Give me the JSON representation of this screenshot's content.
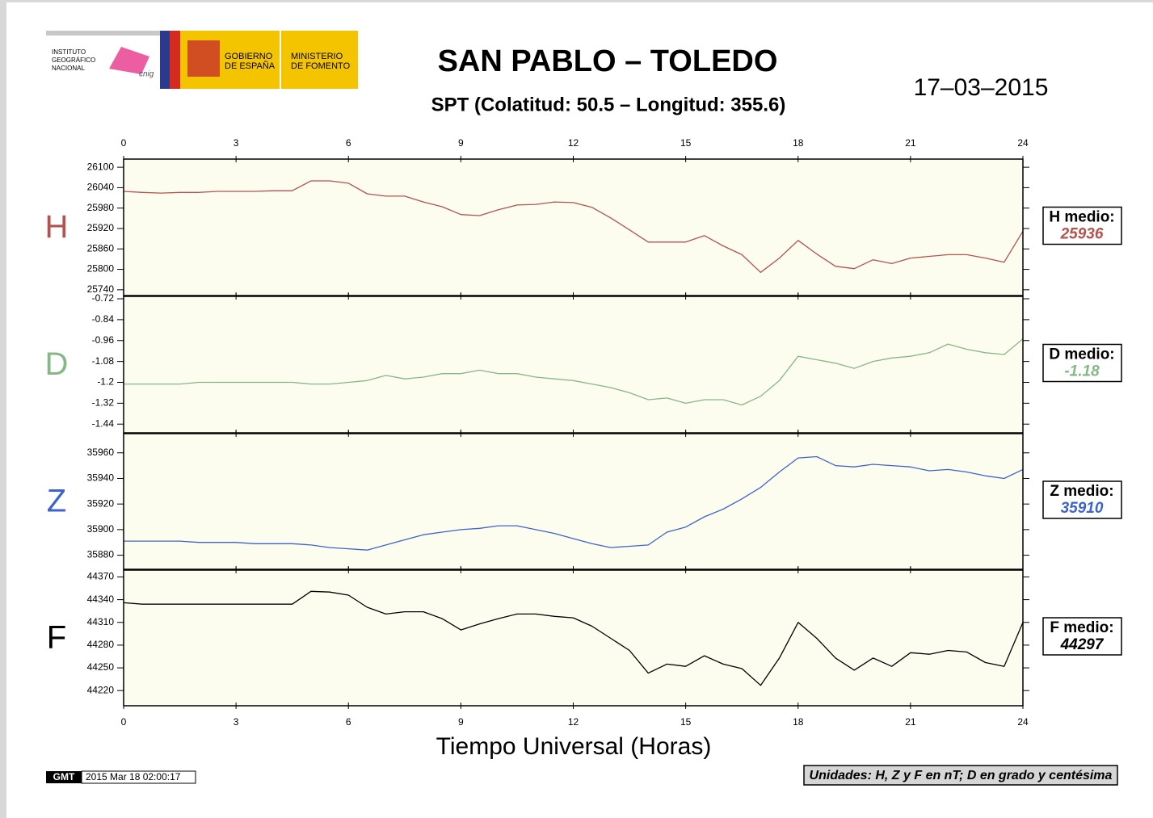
{
  "header": {
    "institute": [
      "INSTITUTO",
      "GEOGRÁFICO",
      "NACIONAL"
    ],
    "cnig": "cnig",
    "government": [
      "GOBIERNO",
      "DE ESPAÑA"
    ],
    "ministry": [
      "MINISTERIO",
      "DE FOMENTO"
    ],
    "title": "SAN PABLO – TOLEDO",
    "subtitle": "SPT (Colatitud: 50.5 – Longitud: 355.6)",
    "date": "17–03–2015"
  },
  "footer": {
    "gmt": "GMT",
    "timestamp": "2015 Mar 18 02:00:17",
    "units": "Unidades: H, Z y F en nT; D en grado y centésima"
  },
  "chart_data": [
    {
      "type": "line",
      "ylabel": "H",
      "color": "#b5524e",
      "mean_label": "H medio:",
      "mean": 25936,
      "xlim": [
        0,
        24
      ],
      "xticks": [
        0,
        3,
        6,
        9,
        12,
        15,
        18,
        21,
        24
      ],
      "ylim": [
        25723,
        26124
      ],
      "yticks": [
        25740,
        25800,
        25860,
        25920,
        25980,
        26040,
        26100
      ],
      "x": [
        0,
        0.5,
        1,
        1.5,
        2,
        2.5,
        3,
        3.5,
        4,
        4.5,
        5,
        5.5,
        6,
        6.5,
        7,
        7.5,
        8,
        8.5,
        9,
        9.5,
        10,
        10.5,
        11,
        11.5,
        12,
        12.5,
        13,
        13.5,
        14,
        14.5,
        15,
        15.5,
        16,
        16.5,
        17,
        17.5,
        18,
        18.5,
        19,
        19.5,
        20,
        20.5,
        21,
        21.5,
        22,
        22.5,
        23,
        23.5,
        24
      ],
      "values": [
        26029,
        26026,
        26024,
        26026,
        26026,
        26029,
        26029,
        26029,
        26031,
        26031,
        26060,
        26060,
        26053,
        26022,
        26015,
        26015,
        25998,
        25984,
        25961,
        25958,
        25975,
        25989,
        25991,
        25998,
        25996,
        25982,
        25951,
        25916,
        25880,
        25880,
        25880,
        25899,
        25869,
        25843,
        25791,
        25833,
        25885,
        25845,
        25809,
        25802,
        25828,
        25817,
        25833,
        25838,
        25843,
        25843,
        25833,
        25821,
        25912
      ]
    },
    {
      "type": "line",
      "ylabel": "D",
      "color": "#86b886",
      "mean_label": "D medio:",
      "mean": -1.18,
      "xlim": [
        0,
        24
      ],
      "xticks": [
        0,
        3,
        6,
        9,
        12,
        15,
        18,
        21,
        24
      ],
      "ylim": [
        -1.49,
        -0.706
      ],
      "yticks": [
        -1.44,
        -1.32,
        -1.2,
        -1.08,
        -0.96,
        -0.84,
        -0.72
      ],
      "x": [
        0,
        0.5,
        1,
        1.5,
        2,
        2.5,
        3,
        3.5,
        4,
        4.5,
        5,
        5.5,
        6,
        6.5,
        7,
        7.5,
        8,
        8.5,
        9,
        9.5,
        10,
        10.5,
        11,
        11.5,
        12,
        12.5,
        13,
        13.5,
        14,
        14.5,
        15,
        15.5,
        16,
        16.5,
        17,
        17.5,
        18,
        18.5,
        19,
        19.5,
        20,
        20.5,
        21,
        21.5,
        22,
        22.5,
        23,
        23.5,
        24
      ],
      "values": [
        -1.21,
        -1.21,
        -1.21,
        -1.21,
        -1.2,
        -1.2,
        -1.2,
        -1.2,
        -1.2,
        -1.2,
        -1.21,
        -1.21,
        -1.2,
        -1.19,
        -1.16,
        -1.18,
        -1.17,
        -1.15,
        -1.15,
        -1.13,
        -1.15,
        -1.15,
        -1.17,
        -1.18,
        -1.19,
        -1.21,
        -1.23,
        -1.26,
        -1.3,
        -1.29,
        -1.32,
        -1.3,
        -1.3,
        -1.33,
        -1.28,
        -1.19,
        -1.05,
        -1.07,
        -1.09,
        -1.12,
        -1.08,
        -1.06,
        -1.05,
        -1.03,
        -0.98,
        -1.01,
        -1.03,
        -1.04,
        -0.95
      ]
    },
    {
      "type": "line",
      "ylabel": "Z",
      "color": "#3e63cf",
      "mean_label": "Z medio:",
      "mean": 35910,
      "xlim": [
        0,
        24
      ],
      "xticks": [
        0,
        3,
        6,
        9,
        12,
        15,
        18,
        21,
        24
      ],
      "ylim": [
        35869,
        35975
      ],
      "yticks": [
        35880,
        35900,
        35920,
        35940,
        35960
      ],
      "x": [
        0,
        0.5,
        1,
        1.5,
        2,
        2.5,
        3,
        3.5,
        4,
        4.5,
        5,
        5.5,
        6,
        6.5,
        7,
        7.5,
        8,
        8.5,
        9,
        9.5,
        10,
        10.5,
        11,
        11.5,
        12,
        12.5,
        13,
        13.5,
        14,
        14.5,
        15,
        15.5,
        16,
        16.5,
        17,
        17.5,
        18,
        18.5,
        19,
        19.5,
        20,
        20.5,
        21,
        21.5,
        22,
        22.5,
        23,
        23.5,
        24
      ],
      "values": [
        35891,
        35891,
        35891,
        35891,
        35890,
        35890,
        35890,
        35889,
        35889,
        35889,
        35888,
        35886,
        35885,
        35884,
        35888,
        35892,
        35896,
        35898,
        35900,
        35901,
        35903,
        35903,
        35900,
        35897,
        35893,
        35889,
        35886,
        35887,
        35888,
        35898,
        35902,
        35910,
        35916,
        35924,
        35933,
        35945,
        35956,
        35957,
        35950,
        35949,
        35951,
        35950,
        35949,
        35946,
        35947,
        35945,
        35942,
        35940,
        35947
      ]
    },
    {
      "type": "line",
      "ylabel": "F",
      "color": "#000000",
      "mean_label": "F medio:",
      "mean": 44297,
      "xlim": [
        0,
        24
      ],
      "xticks": [
        0,
        3,
        6,
        9,
        12,
        15,
        18,
        21,
        24
      ],
      "xlabel": "Tiempo Universal (Horas)",
      "ylim": [
        44200,
        44379
      ],
      "yticks": [
        44220,
        44250,
        44280,
        44310,
        44340,
        44370
      ],
      "x": [
        0,
        0.5,
        1,
        1.5,
        2,
        2.5,
        3,
        3.5,
        4,
        4.5,
        5,
        5.5,
        6,
        6.5,
        7,
        7.5,
        8,
        8.5,
        9,
        9.5,
        10,
        10.5,
        11,
        11.5,
        12,
        12.5,
        13,
        13.5,
        14,
        14.5,
        15,
        15.5,
        16,
        16.5,
        17,
        17.5,
        18,
        18.5,
        19,
        19.5,
        20,
        20.5,
        21,
        21.5,
        22,
        22.5,
        23,
        23.5,
        24
      ],
      "values": [
        44336,
        44334,
        44334,
        44334,
        44334,
        44334,
        44334,
        44334,
        44334,
        44334,
        44351,
        44350,
        44346,
        44330,
        44321,
        44324,
        44324,
        44315,
        44300,
        44308,
        44315,
        44321,
        44321,
        44318,
        44316,
        44305,
        44289,
        44273,
        44243,
        44255,
        44252,
        44266,
        44255,
        44249,
        44227,
        44263,
        44310,
        44289,
        44263,
        44247,
        44263,
        44252,
        44270,
        44268,
        44273,
        44271,
        44257,
        44252,
        44310
      ]
    }
  ]
}
